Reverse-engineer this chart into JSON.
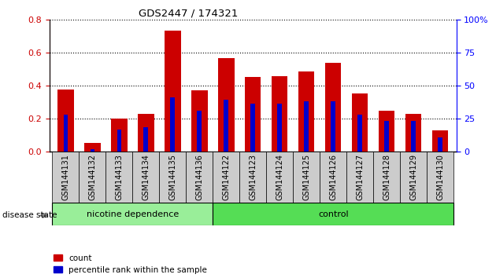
{
  "title": "GDS2447 / 174321",
  "categories": [
    "GSM144131",
    "GSM144132",
    "GSM144133",
    "GSM144134",
    "GSM144135",
    "GSM144136",
    "GSM144122",
    "GSM144123",
    "GSM144124",
    "GSM144125",
    "GSM144126",
    "GSM144127",
    "GSM144128",
    "GSM144129",
    "GSM144130"
  ],
  "count_values": [
    0.375,
    0.05,
    0.2,
    0.23,
    0.73,
    0.37,
    0.565,
    0.45,
    0.455,
    0.485,
    0.535,
    0.35,
    0.245,
    0.23,
    0.13
  ],
  "percentile_values": [
    0.225,
    0.015,
    0.135,
    0.145,
    0.33,
    0.245,
    0.315,
    0.29,
    0.29,
    0.305,
    0.305,
    0.225,
    0.185,
    0.185,
    0.085
  ],
  "count_color": "#cc0000",
  "percentile_color": "#0000cc",
  "ylim_left": [
    0,
    0.8
  ],
  "ylim_right": [
    0,
    100
  ],
  "yticks_left": [
    0,
    0.2,
    0.4,
    0.6,
    0.8
  ],
  "yticks_right": [
    0,
    25,
    50,
    75,
    100
  ],
  "nicotine_label": "nicotine dependence",
  "control_label": "control",
  "disease_state_label": "disease state",
  "legend_count": "count",
  "legend_percentile": "percentile rank within the sample",
  "bar_width": 0.6,
  "nicotine_color": "#99ee99",
  "control_color": "#55dd55",
  "tick_bg_color": "#cccccc",
  "n_nicotine": 6,
  "n_control": 9
}
